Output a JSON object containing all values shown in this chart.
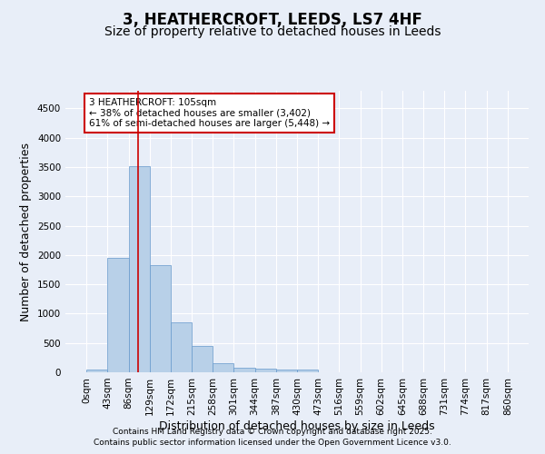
{
  "title_line1": "3, HEATHERCROFT, LEEDS, LS7 4HF",
  "title_line2": "Size of property relative to detached houses in Leeds",
  "xlabel": "Distribution of detached houses by size in Leeds",
  "ylabel": "Number of detached properties",
  "bin_edges": [
    0,
    43,
    86,
    129,
    172,
    215,
    258,
    301,
    344,
    387,
    430,
    473,
    516,
    559,
    602,
    645,
    688,
    731,
    774,
    817,
    860
  ],
  "bar_heights": [
    50,
    1950,
    3520,
    1820,
    850,
    450,
    160,
    80,
    60,
    40,
    40,
    0,
    0,
    0,
    0,
    0,
    0,
    0,
    0,
    0
  ],
  "bar_color": "#b8d0e8",
  "bar_edgecolor": "#6699cc",
  "property_size": 105,
  "vline_color": "#cc0000",
  "annotation_text": "3 HEATHERCROFT: 105sqm\n← 38% of detached houses are smaller (3,402)\n61% of semi-detached houses are larger (5,448) →",
  "annotation_box_edgecolor": "#cc0000",
  "annotation_box_facecolor": "#ffffff",
  "ylim_max": 4800,
  "yticks": [
    0,
    500,
    1000,
    1500,
    2000,
    2500,
    3000,
    3500,
    4000,
    4500
  ],
  "bg_color": "#e8eef8",
  "axes_bg_color": "#e8eef8",
  "grid_color": "#ffffff",
  "title_fontsize": 12,
  "subtitle_fontsize": 10,
  "tick_label_fontsize": 7.5,
  "axis_label_fontsize": 9,
  "footer_text1": "Contains HM Land Registry data © Crown copyright and database right 2025.",
  "footer_text2": "Contains public sector information licensed under the Open Government Licence v3.0."
}
